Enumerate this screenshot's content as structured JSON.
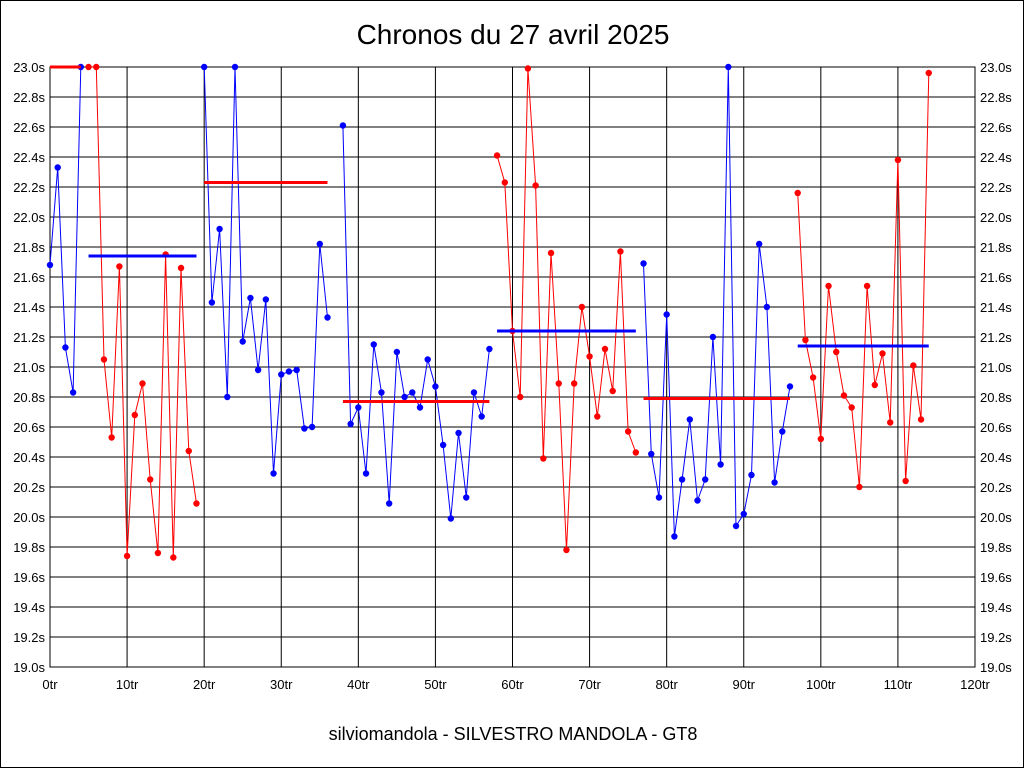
{
  "chart_data": {
    "type": "line",
    "title": "Chronos du 27 avril 2025",
    "subtitle": "silviomandola - SILVESTRO MANDOLA - GT8",
    "xlim": [
      0,
      120
    ],
    "ylim": [
      19.0,
      23.0
    ],
    "x_ticks": [
      0,
      10,
      20,
      30,
      40,
      50,
      60,
      70,
      80,
      90,
      100,
      110,
      120
    ],
    "x_tick_labels": [
      "0tr",
      "10tr",
      "20tr",
      "30tr",
      "40tr",
      "50tr",
      "60tr",
      "70tr",
      "80tr",
      "90tr",
      "100tr",
      "110tr",
      "120tr"
    ],
    "y_ticks": [
      19.0,
      19.2,
      19.4,
      19.6,
      19.8,
      20.0,
      20.2,
      20.4,
      20.6,
      20.8,
      21.0,
      21.2,
      21.4,
      21.6,
      21.8,
      22.0,
      22.2,
      22.4,
      22.6,
      22.8,
      23.0
    ],
    "y_tick_labels": [
      "19.0s",
      "19.2s",
      "19.4s",
      "19.6s",
      "19.8s",
      "20.0s",
      "20.2s",
      "20.4s",
      "20.6s",
      "20.8s",
      "21.0s",
      "21.2s",
      "21.4s",
      "21.6s",
      "21.8s",
      "22.0s",
      "22.2s",
      "22.4s",
      "22.6s",
      "22.8s",
      "23.0s"
    ],
    "grid": true,
    "stints": [
      {
        "color": "#0000ff",
        "laps": [
          0,
          1,
          2,
          3,
          4
        ],
        "times": [
          21.68,
          22.33,
          21.13,
          20.83,
          23.0
        ],
        "avg": 23.0,
        "avg_color": "#ff0000",
        "avg_range": [
          0,
          4
        ]
      },
      {
        "color": "#ff0000",
        "laps": [
          5,
          6,
          7,
          8,
          9,
          10,
          11,
          12,
          13,
          14,
          15,
          16,
          17,
          18,
          19
        ],
        "times": [
          23.0,
          23.0,
          21.05,
          20.53,
          21.67,
          19.74,
          20.68,
          20.89,
          20.25,
          19.76,
          21.75,
          19.73,
          21.66,
          20.44,
          20.09
        ],
        "avg": 21.74,
        "avg_color": "#0000ff",
        "avg_range": [
          5,
          19
        ]
      },
      {
        "color": "#0000ff",
        "laps": [
          20,
          21,
          22,
          23,
          24,
          25,
          26,
          27,
          28,
          29,
          30,
          31,
          32,
          33,
          34,
          35,
          36
        ],
        "times": [
          23.0,
          21.43,
          21.92,
          20.8,
          23.0,
          21.17,
          21.46,
          20.98,
          21.45,
          20.29,
          20.95,
          20.97,
          20.98,
          20.59,
          20.6,
          21.82,
          21.33
        ],
        "avg": 22.23,
        "avg_color": "#ff0000",
        "avg_range": [
          20,
          36
        ]
      },
      {
        "color": "#0000ff",
        "laps": [
          38,
          39,
          40,
          41,
          42,
          43,
          44,
          45,
          46,
          47,
          48,
          49,
          50,
          51,
          52,
          53,
          54,
          55,
          56,
          57
        ],
        "times": [
          22.61,
          20.62,
          20.73,
          20.29,
          21.15,
          20.83,
          20.09,
          21.1,
          20.8,
          20.83,
          20.73,
          21.05,
          20.87,
          20.48,
          19.99,
          20.56,
          20.13,
          20.83,
          20.67,
          21.12
        ],
        "avg": 20.77,
        "avg_color": "#ff0000",
        "avg_range": [
          38,
          57
        ]
      },
      {
        "color": "#ff0000",
        "laps": [
          58,
          59,
          60,
          61,
          62,
          63,
          64,
          65,
          66,
          67,
          68,
          69,
          70,
          71,
          72,
          73,
          74,
          75,
          76
        ],
        "times": [
          22.41,
          22.23,
          21.24,
          20.8,
          22.99,
          22.21,
          20.39,
          21.76,
          20.89,
          19.78,
          20.89,
          21.4,
          21.07,
          20.67,
          21.12,
          20.84,
          21.77,
          20.57,
          20.43
        ],
        "avg": 21.24,
        "avg_color": "#0000ff",
        "avg_range": [
          58,
          76
        ]
      },
      {
        "color": "#0000ff",
        "laps": [
          77,
          78,
          79,
          80,
          81,
          82,
          83,
          84,
          85,
          86,
          87,
          88,
          89,
          90,
          91,
          92,
          93,
          94,
          95,
          96
        ],
        "times": [
          21.69,
          20.42,
          20.13,
          21.35,
          19.87,
          20.25,
          20.65,
          20.11,
          20.25,
          21.2,
          20.35,
          23.0,
          19.94,
          20.02,
          20.28,
          21.82,
          21.4,
          20.23,
          20.57,
          20.87
        ],
        "avg": 20.79,
        "avg_color": "#ff0000",
        "avg_range": [
          77,
          96
        ]
      },
      {
        "color": "#ff0000",
        "laps": [
          97,
          98,
          99,
          100,
          101,
          102,
          103,
          104,
          105,
          106,
          107,
          108,
          109,
          110,
          111,
          112,
          113,
          114
        ],
        "times": [
          22.16,
          21.18,
          20.93,
          20.52,
          21.54,
          21.1,
          20.81,
          20.73,
          20.2,
          21.54,
          20.88,
          21.09,
          20.63,
          22.38,
          20.24,
          21.01,
          20.65,
          22.96
        ],
        "avg": 21.14,
        "avg_color": "#0000ff",
        "avg_range": [
          97,
          114
        ]
      }
    ]
  }
}
